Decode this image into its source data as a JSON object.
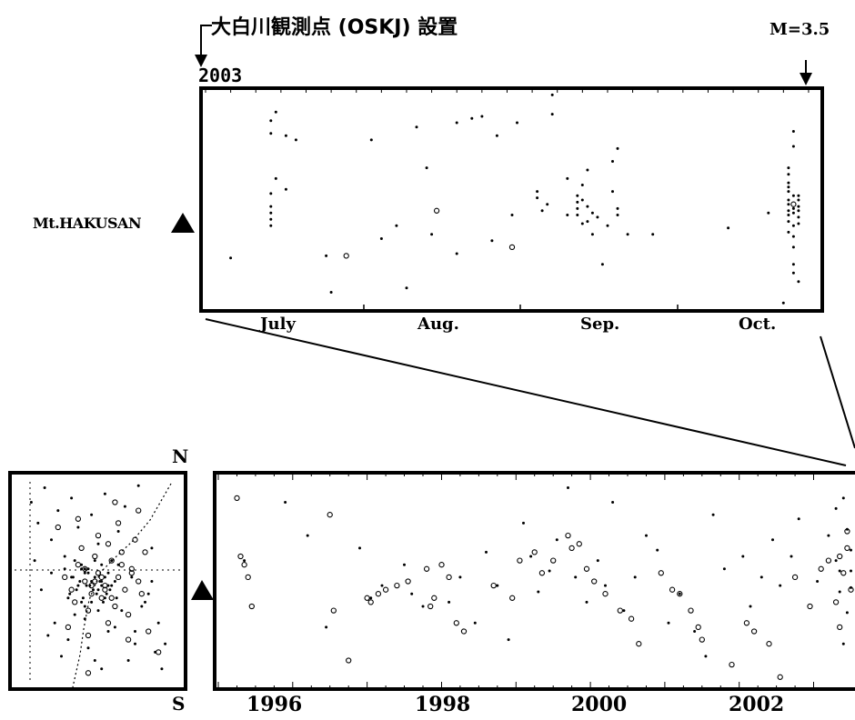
{
  "chart_data": [
    {
      "type": "scatter",
      "title": "大白川観測点 (OSKJ) 設置",
      "year_label": "2003",
      "event_label": "M=3.5",
      "volcano_label": "Mt.HAKUSAN",
      "x_ticks": [
        "July",
        "Aug.",
        "Sep.",
        "Oct."
      ],
      "xlim": [
        0,
        122
      ],
      "ylim": [
        0,
        1
      ],
      "grid": false,
      "series": [
        {
          "marker": "dot",
          "x": [
            5,
            13,
            13,
            13,
            13,
            13,
            13,
            13,
            14,
            14,
            16,
            16,
            18,
            24,
            25,
            33,
            35,
            38,
            40,
            42,
            44,
            45,
            50,
            50,
            53,
            55,
            57,
            58,
            61,
            62,
            66,
            66,
            67,
            68,
            69,
            69,
            72,
            72,
            74,
            74,
            74,
            74,
            75,
            75,
            75,
            76,
            76,
            76,
            77,
            77,
            78,
            79,
            80,
            81,
            81,
            82,
            82,
            82,
            84,
            89,
            104,
            112,
            115,
            116,
            116,
            116,
            116,
            116,
            116,
            116,
            116,
            116,
            116,
            116,
            117,
            117,
            117,
            117,
            117,
            117,
            117,
            117,
            117,
            117,
            118,
            118,
            118,
            118,
            118,
            118,
            118
          ],
          "y": [
            0.23,
            0.87,
            0.81,
            0.53,
            0.47,
            0.44,
            0.41,
            0.38,
            0.6,
            0.91,
            0.8,
            0.55,
            0.78,
            0.24,
            0.07,
            0.78,
            0.32,
            0.38,
            0.09,
            0.84,
            0.65,
            0.34,
            0.25,
            0.86,
            0.88,
            0.89,
            0.31,
            0.8,
            0.43,
            0.86,
            0.54,
            0.51,
            0.45,
            0.48,
            0.9,
            0.99,
            0.6,
            0.43,
            0.52,
            0.49,
            0.46,
            0.43,
            0.39,
            0.57,
            0.5,
            0.64,
            0.47,
            0.4,
            0.34,
            0.44,
            0.42,
            0.2,
            0.38,
            0.54,
            0.68,
            0.46,
            0.43,
            0.74,
            0.34,
            0.34,
            0.37,
            0.44,
            0.02,
            0.4,
            0.48,
            0.5,
            0.56,
            0.58,
            0.62,
            0.65,
            0.54,
            0.45,
            0.43,
            0.35,
            0.82,
            0.75,
            0.52,
            0.46,
            0.44,
            0.38,
            0.33,
            0.28,
            0.2,
            0.16,
            0.39,
            0.52,
            0.47,
            0.5,
            0.45,
            0.12,
            0.42
          ]
        },
        {
          "marker": "circle",
          "x": [
            28,
            46,
            61,
            117
          ],
          "y": [
            0.24,
            0.45,
            0.28,
            0.48
          ]
        }
      ]
    },
    {
      "type": "scatter",
      "x_ticks": [
        "1996",
        "1998",
        "2000",
        "2002"
      ],
      "xlim": [
        1995.0,
        2003.8
      ],
      "ylim": [
        0,
        1
      ],
      "grid": false,
      "series": [
        {
          "marker": "dot",
          "x": [
            1995.35,
            1995.9,
            1996.2,
            1996.45,
            1996.9,
            1997.05,
            1997.2,
            1997.5,
            1997.6,
            1997.75,
            1998.1,
            1998.25,
            1998.45,
            1998.6,
            1998.75,
            1998.9,
            1999.1,
            1999.2,
            1999.3,
            1999.45,
            1999.55,
            1999.7,
            1999.8,
            1999.95,
            2000.1,
            2000.2,
            2000.3,
            2000.45,
            2000.6,
            2000.75,
            2000.9,
            2001.05,
            2001.2,
            2001.4,
            2001.55,
            2001.65,
            2001.8,
            2002.05,
            2002.15,
            2002.3,
            2002.45,
            2002.55,
            2002.7,
            2002.8,
            2003.05,
            2003.2,
            2003.3,
            2003.35,
            2003.4,
            2003.45,
            2003.5,
            2003.55,
            2003.6,
            2003.65,
            2003.7,
            2003.75,
            2003.3,
            2003.4,
            2003.5,
            2003.6,
            2003.7,
            2003.45,
            2003.55,
            2003.65,
            2003.35,
            2003.5,
            2003.62
          ],
          "y": [
            0.6,
            0.88,
            0.72,
            0.28,
            0.66,
            0.42,
            0.48,
            0.58,
            0.44,
            0.38,
            0.4,
            0.52,
            0.3,
            0.64,
            0.48,
            0.22,
            0.78,
            0.62,
            0.45,
            0.55,
            0.7,
            0.95,
            0.52,
            0.4,
            0.6,
            0.48,
            0.88,
            0.36,
            0.52,
            0.72,
            0.65,
            0.3,
            0.44,
            0.26,
            0.14,
            0.82,
            0.56,
            0.62,
            0.38,
            0.52,
            0.7,
            0.48,
            0.62,
            0.8,
            0.5,
            0.72,
            0.6,
            0.45,
            0.9,
            0.35,
            0.55,
            0.25,
            0.68,
            0.4,
            0.58,
            0.3,
            0.85,
            0.2,
            0.65,
            0.5,
            0.42,
            0.75,
            0.33,
            0.6,
            0.55,
            0.47,
            0.38
          ]
        },
        {
          "marker": "circle",
          "x": [
            1995.25,
            1995.3,
            1995.35,
            1995.4,
            1995.45,
            1996.5,
            1996.55,
            1996.75,
            1997.0,
            1997.05,
            1997.15,
            1997.25,
            1997.4,
            1997.55,
            1997.8,
            1997.85,
            1997.9,
            1998.0,
            1998.1,
            1998.2,
            1998.3,
            1998.7,
            1998.95,
            1999.05,
            1999.25,
            1999.35,
            1999.5,
            1999.7,
            1999.75,
            1999.85,
            1999.95,
            2000.05,
            2000.2,
            2000.4,
            2000.55,
            2000.65,
            2000.95,
            2001.1,
            2001.2,
            2001.35,
            2001.45,
            2001.5,
            2001.9,
            2002.1,
            2002.2,
            2002.4,
            2002.55,
            2002.75,
            2002.95,
            2003.1,
            2003.2,
            2003.3,
            2003.35,
            2003.4,
            2003.45,
            2003.5,
            2003.55,
            2003.6,
            2003.65,
            2003.7,
            2003.75,
            2003.35,
            2003.45,
            2003.55,
            2003.62,
            2003.7
          ],
          "y": [
            0.9,
            0.62,
            0.58,
            0.52,
            0.38,
            0.82,
            0.36,
            0.12,
            0.42,
            0.4,
            0.44,
            0.46,
            0.48,
            0.5,
            0.56,
            0.38,
            0.42,
            0.58,
            0.52,
            0.3,
            0.26,
            0.48,
            0.42,
            0.6,
            0.64,
            0.54,
            0.6,
            0.72,
            0.66,
            0.68,
            0.56,
            0.5,
            0.44,
            0.36,
            0.32,
            0.2,
            0.54,
            0.46,
            0.44,
            0.36,
            0.28,
            0.22,
            0.1,
            0.3,
            0.26,
            0.2,
            0.04,
            0.52,
            0.38,
            0.56,
            0.6,
            0.4,
            0.62,
            0.54,
            0.66,
            0.46,
            0.7,
            0.48,
            0.32,
            0.58,
            0.44,
            0.28,
            0.74,
            0.36,
            0.22,
            0.52
          ]
        }
      ]
    },
    {
      "type": "scatter",
      "top_label": "N",
      "bottom_label": "S",
      "xlim": [
        0,
        1
      ],
      "ylim": [
        0,
        1
      ],
      "grid": false,
      "series": [
        {
          "marker": "dot",
          "x": [
            0.1,
            0.14,
            0.18,
            0.22,
            0.26,
            0.3,
            0.34,
            0.38,
            0.42,
            0.46,
            0.5,
            0.54,
            0.58,
            0.62,
            0.66,
            0.7,
            0.74,
            0.78,
            0.82,
            0.86,
            0.9,
            0.2,
            0.28,
            0.36,
            0.44,
            0.52,
            0.6,
            0.68,
            0.76,
            0.84,
            0.16,
            0.24,
            0.32,
            0.4,
            0.48,
            0.56,
            0.64,
            0.72,
            0.8,
            0.88,
            0.12,
            0.22,
            0.32,
            0.42,
            0.52,
            0.62,
            0.72,
            0.82,
            0.3,
            0.34,
            0.38,
            0.42,
            0.46,
            0.5,
            0.54,
            0.58,
            0.36,
            0.4,
            0.44,
            0.48,
            0.52,
            0.56,
            0.6,
            0.33,
            0.37,
            0.41,
            0.45,
            0.49,
            0.53,
            0.57,
            0.61,
            0.35,
            0.39,
            0.43,
            0.47,
            0.51,
            0.55,
            0.4,
            0.44,
            0.48,
            0.52,
            0.56,
            0.42,
            0.46,
            0.5,
            0.54
          ],
          "y": [
            0.88,
            0.78,
            0.95,
            0.7,
            0.84,
            0.62,
            0.9,
            0.76,
            0.56,
            0.82,
            0.68,
            0.92,
            0.6,
            0.74,
            0.86,
            0.52,
            0.96,
            0.4,
            0.66,
            0.3,
            0.2,
            0.24,
            0.14,
            0.34,
            0.18,
            0.08,
            0.28,
            0.12,
            0.38,
            0.16,
            0.46,
            0.3,
            0.22,
            0.4,
            0.12,
            0.26,
            0.36,
            0.2,
            0.44,
            0.08,
            0.6,
            0.54,
            0.42,
            0.32,
            0.48,
            0.58,
            0.26,
            0.5,
            0.56,
            0.52,
            0.48,
            0.54,
            0.5,
            0.46,
            0.52,
            0.48,
            0.6,
            0.58,
            0.56,
            0.6,
            0.58,
            0.54,
            0.5,
            0.44,
            0.46,
            0.42,
            0.48,
            0.44,
            0.4,
            0.46,
            0.42,
            0.52,
            0.5,
            0.48,
            0.46,
            0.5,
            0.44,
            0.56,
            0.54,
            0.52,
            0.5,
            0.48,
            0.38,
            0.4,
            0.36,
            0.42
          ]
        },
        {
          "marker": "circle",
          "x": [
            0.3,
            0.34,
            0.38,
            0.42,
            0.46,
            0.5,
            0.54,
            0.58,
            0.62,
            0.66,
            0.7,
            0.74,
            0.78,
            0.36,
            0.44,
            0.52,
            0.6,
            0.68,
            0.76,
            0.4,
            0.48,
            0.56,
            0.64,
            0.72,
            0.32,
            0.44,
            0.56,
            0.68,
            0.8,
            0.26,
            0.38,
            0.5,
            0.62,
            0.74,
            0.86,
            0.48,
            0.52,
            0.46,
            0.54,
            0.42,
            0.58,
            0.64,
            0.7,
            0.6,
            0.44
          ],
          "y": [
            0.52,
            0.46,
            0.58,
            0.5,
            0.44,
            0.54,
            0.48,
            0.6,
            0.52,
            0.46,
            0.56,
            0.5,
            0.64,
            0.4,
            0.36,
            0.42,
            0.38,
            0.34,
            0.44,
            0.66,
            0.62,
            0.68,
            0.64,
            0.7,
            0.28,
            0.24,
            0.3,
            0.22,
            0.26,
            0.76,
            0.8,
            0.72,
            0.78,
            0.84,
            0.16,
            0.5,
            0.52,
            0.48,
            0.46,
            0.56,
            0.42,
            0.58,
            0.54,
            0.88,
            0.06
          ]
        }
      ]
    }
  ]
}
